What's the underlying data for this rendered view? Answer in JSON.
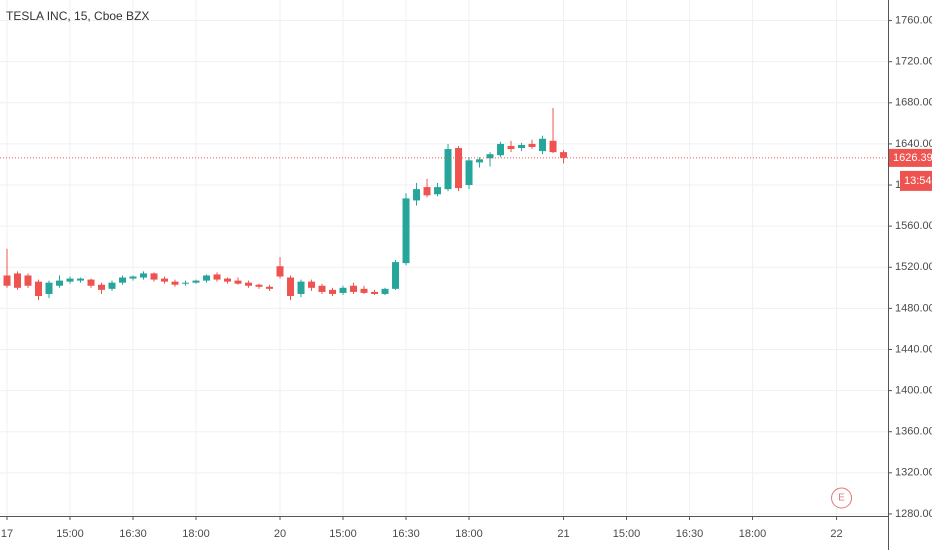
{
  "chart_data": {
    "type": "candlestick",
    "title": "TESLA INC, 15, Cboe BZX",
    "open": [
      1512,
      1514,
      1512,
      1506,
      1494,
      1502,
      1506,
      1507,
      1508,
      1503,
      1499,
      1505,
      1509,
      1510,
      1514,
      1509,
      1506,
      1504,
      1505,
      1507,
      1513,
      1509,
      1507,
      1505,
      1503,
      1501,
      1521,
      1510,
      1494,
      1506,
      1502,
      1498,
      1495,
      1502,
      1499,
      1496,
      1494,
      1499,
      1524,
      1585,
      1598,
      1591,
      1596,
      1636,
      1600,
      1622,
      1626,
      1629,
      1638,
      1636,
      1640,
      1633,
      1643,
      1632
    ],
    "high": [
      1538,
      1516,
      1514,
      1508,
      1507,
      1512,
      1511,
      1510,
      1509,
      1505,
      1507,
      1512,
      1512,
      1516,
      1515,
      1511,
      1508,
      1507,
      1508,
      1513,
      1515,
      1510,
      1510,
      1507,
      1504,
      1503,
      1530,
      1512,
      1508,
      1508,
      1504,
      1500,
      1502,
      1505,
      1502,
      1498,
      1500,
      1527,
      1592,
      1602,
      1606,
      1602,
      1640,
      1638,
      1627,
      1627,
      1632,
      1642,
      1643,
      1641,
      1644,
      1648,
      1675,
      1634
    ],
    "low": [
      1500,
      1498,
      1500,
      1488,
      1490,
      1500,
      1504,
      1505,
      1500,
      1494,
      1497,
      1503,
      1507,
      1508,
      1506,
      1504,
      1501,
      1502,
      1504,
      1505,
      1506,
      1504,
      1503,
      1500,
      1499,
      1497,
      1509,
      1488,
      1491,
      1497,
      1494,
      1492,
      1493,
      1494,
      1494,
      1493,
      1493,
      1498,
      1522,
      1580,
      1588,
      1589,
      1594,
      1594,
      1596,
      1617,
      1618,
      1627,
      1632,
      1633,
      1635,
      1630,
      1631,
      1621
    ],
    "close": [
      1502,
      1500,
      1502,
      1492,
      1505,
      1507,
      1509,
      1509,
      1502,
      1498,
      1505,
      1510,
      1511,
      1514,
      1508,
      1506,
      1503,
      1505,
      1507,
      1512,
      1508,
      1506,
      1504,
      1502,
      1501,
      1499,
      1511,
      1492,
      1506,
      1500,
      1496,
      1494,
      1500,
      1496,
      1495,
      1494,
      1499,
      1525,
      1587,
      1596,
      1590,
      1598,
      1635,
      1597,
      1624,
      1625,
      1630,
      1640,
      1635,
      1639,
      1637,
      1645,
      1632,
      1626.39
    ],
    "up_color": "#26a69a",
    "down_color": "#ef5350",
    "xlim": [
      -0.667,
      83.9
    ],
    "xticks": [
      {
        "value": 0,
        "label": "17"
      },
      {
        "value": 6,
        "label": "15:00"
      },
      {
        "value": 12,
        "label": "16:30"
      },
      {
        "value": 18,
        "label": "18:00"
      },
      {
        "value": 26,
        "label": "20"
      },
      {
        "value": 32,
        "label": "15:00"
      },
      {
        "value": 38,
        "label": "16:30"
      },
      {
        "value": 44,
        "label": "18:00"
      },
      {
        "value": 53,
        "label": "21"
      },
      {
        "value": 59,
        "label": "15:00"
      },
      {
        "value": 65,
        "label": "16:30"
      },
      {
        "value": 71,
        "label": "18:00"
      },
      {
        "value": 79,
        "label": "22"
      }
    ],
    "ylim": [
      1278,
      1780
    ],
    "yticks": [
      {
        "value": 1280,
        "label": "1280.00"
      },
      {
        "value": 1320,
        "label": "1320.00"
      },
      {
        "value": 1360,
        "label": "1360.00"
      },
      {
        "value": 1400,
        "label": "1400.00"
      },
      {
        "value": 1440,
        "label": "1440.00"
      },
      {
        "value": 1480,
        "label": "1480.00"
      },
      {
        "value": 1520,
        "label": "1520.00"
      },
      {
        "value": 1560,
        "label": "1560.00"
      },
      {
        "value": 1600,
        "label": "1600.00"
      },
      {
        "value": 1640,
        "label": "1640.00"
      },
      {
        "value": 1680,
        "label": "1680.00"
      },
      {
        "value": 1720,
        "label": "1720.00"
      },
      {
        "value": 1760,
        "label": "1760.00"
      }
    ],
    "grid": true,
    "last_price": 1626.39,
    "countdown": "13:54",
    "earnings_marker": {
      "x": 79,
      "label": "E"
    }
  }
}
